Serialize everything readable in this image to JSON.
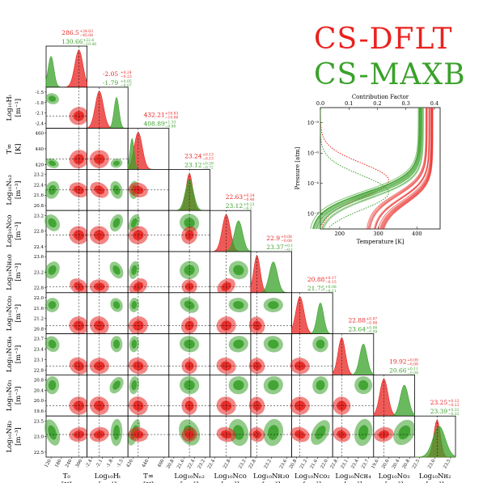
{
  "legend": {
    "red": {
      "label": "CS-DFLT",
      "color": "#e8231f"
    },
    "green": {
      "label": "CS-MAXB",
      "color": "#3aa12a"
    }
  },
  "colors": {
    "red": "#e8231f",
    "green": "#3aa12a"
  },
  "chart_data": [
    {
      "type": "corner",
      "parameters": [
        {
          "name": "T0",
          "label": "T₀",
          "unit": "[K]",
          "ticks": [
            "120",
            "180",
            "240",
            "300"
          ],
          "red": {
            "median": "286.5",
            "plus": "+24.63",
            "minus": "−45.08"
          },
          "green": {
            "median": "130.66",
            "plus": "+22.6",
            "minus": "−10.46"
          }
        },
        {
          "name": "log10_HT",
          "label": "Log₁₀Hₜ",
          "unit": "[m⁻¹]",
          "ticks": [
            "-2.4",
            "-2.1",
            "-1.8",
            "-1.5"
          ],
          "red": {
            "median": "-2.05",
            "plus": "+0.24",
            "minus": "−0.23"
          },
          "green": {
            "median": "-1.79",
            "plus": "+0.05",
            "minus": "−0.07"
          }
        },
        {
          "name": "T_inf",
          "label": "T∞",
          "unit": "[K]",
          "ticks": [
            "420",
            "440",
            "460"
          ],
          "red": {
            "median": "432.21",
            "plus": "+16.83",
            "minus": "−10.86"
          },
          "green": {
            "median": "408.89",
            "plus": "+1.33",
            "minus": "−0.80"
          }
        },
        {
          "name": "log10_NN2",
          "label": "Log₁₀Nₙ₂",
          "unit": "[m⁻³]",
          "ticks": [
            "20.8",
            "21.6",
            "22.4",
            "23.2"
          ],
          "red": {
            "median": "23.24",
            "plus": "+0.13",
            "minus": "−0.13"
          },
          "green": {
            "median": "23.12",
            "plus": "+0.39",
            "minus": "−0.72"
          }
        },
        {
          "name": "log10_NCO",
          "label": "Log₁₀Nᴄᴏ",
          "unit": "[m⁻³]",
          "ticks": [
            "22.4",
            "22.8",
            "23.2"
          ],
          "red": {
            "median": "22.63",
            "plus": "+0.34",
            "minus": "−0.46"
          },
          "green": {
            "median": "23.12",
            "plus": "+0.23",
            "minus": "−0.2"
          }
        },
        {
          "name": "log10_NH2O",
          "label": "Log₁₀Nʜ₂ᴏ",
          "unit": "[m⁻³]",
          "ticks": [
            "22.8",
            "23.2",
            "23.6"
          ],
          "red": {
            "median": "22.9",
            "plus": "+0.08",
            "minus": "−0.08"
          },
          "green": {
            "median": "23.37",
            "plus": "+0.1",
            "minus": "−0.1"
          }
        },
        {
          "name": "log10_NCO2",
          "label": "Log₁₀Nᴄᴏ₂",
          "unit": "[m⁻³]",
          "ticks": [
            "20.8",
            "21.2",
            "21.6",
            "22.0"
          ],
          "red": {
            "median": "20.88",
            "plus": "+0.17",
            "minus": "−0.15"
          },
          "green": {
            "median": "21.75",
            "plus": "+0.08",
            "minus": "−0.11"
          }
        },
        {
          "name": "log10_NCH4",
          "label": "Log₁₀Nᴄʜ₄",
          "unit": "[m⁻³]",
          "ticks": [
            "22.8",
            "23.1",
            "23.4",
            "23.7"
          ],
          "red": {
            "median": "22.88",
            "plus": "+0.07",
            "minus": "−0.08"
          },
          "green": {
            "median": "23.64",
            "plus": "+0.08",
            "minus": "−0.09"
          }
        },
        {
          "name": "log10_NO3",
          "label": "Log₁₀Nᴏ₃",
          "unit": "[m⁻³]",
          "ticks": [
            "19.6",
            "20.0",
            "20.4",
            "20.8"
          ],
          "red": {
            "median": "19.92",
            "plus": "+0.09",
            "minus": "−0.08"
          },
          "green": {
            "median": "20.66",
            "plus": "+0.11",
            "minus": "−0.09"
          }
        },
        {
          "name": "log10_NH2",
          "label": "Log₁₀Nʜ₂",
          "unit": "[m⁻³]",
          "ticks": [
            "22.5",
            "23.0",
            "23.5"
          ],
          "red": {
            "median": "23.25",
            "plus": "+0.12",
            "minus": "−0.12"
          },
          "green": {
            "median": "23.39",
            "plus": "+0.31",
            "minus": "−0.32"
          }
        }
      ],
      "y_labels": [
        {
          "row": 1,
          "label": "Log₁₀Hₜ",
          "unit": "[m⁻¹]",
          "ticks": [
            "-1.5",
            "-1.8",
            "-2.1",
            "-2.4"
          ]
        },
        {
          "row": 2,
          "label": "T∞",
          "unit": "[K]",
          "ticks": [
            "460",
            "440",
            "420"
          ]
        },
        {
          "row": 3,
          "label": "Log₁₀Nₙ₂",
          "unit": "[m⁻³]",
          "ticks": [
            "23.2",
            "22.4",
            "21.6",
            "20.8"
          ]
        },
        {
          "row": 4,
          "label": "Log₁₀Nᴄᴏ",
          "unit": "[m⁻³]",
          "ticks": [
            "23.2",
            "22.8",
            "22.4"
          ]
        },
        {
          "row": 5,
          "label": "Log₁₀Nʜ₂ᴏ",
          "unit": "[m⁻³]",
          "ticks": [
            "23.6",
            "23.2",
            "22.8"
          ]
        },
        {
          "row": 6,
          "label": "Log₁₀Nᴄᴏ₂",
          "unit": "[m⁻³]",
          "ticks": [
            "22.0",
            "21.6",
            "21.2",
            "20.8"
          ]
        },
        {
          "row": 7,
          "label": "Log₁₀Nᴄʜ₄",
          "unit": "[m⁻³]",
          "ticks": [
            "23.7",
            "23.4",
            "23.1",
            "22.8"
          ]
        },
        {
          "row": 8,
          "label": "Log₁₀Nᴏ₃",
          "unit": "[m⁻³]",
          "ticks": [
            "20.8",
            "20.4",
            "20.0",
            "19.6"
          ]
        },
        {
          "row": 9,
          "label": "Log₁₀Nʜ₂",
          "unit": "[m⁻³]",
          "ticks": [
            "23.5",
            "23.0",
            "22.5"
          ]
        }
      ]
    },
    {
      "type": "line",
      "xlabel": "Temperature [K]",
      "ylabel": "Pressure [atm]",
      "top_xlabel": "Contribution Factor",
      "x_ticks": [
        "200",
        "300",
        "400"
      ],
      "xlim": [
        150,
        460
      ],
      "top_ticks": [
        "0.0",
        "0.1",
        "0.2",
        "0.3",
        "0.4"
      ],
      "top_lim": [
        0.0,
        0.42
      ],
      "y_ticks": [
        "10⁻⁸",
        "10⁻⁶",
        "10⁻⁴",
        "10⁻²"
      ],
      "ylim_log10": [
        -9,
        -1
      ],
      "series": [
        {
          "color": "#e8231f",
          "T0": 286.5,
          "Tinf": 432.21,
          "log10_HT": -2.05
        },
        {
          "color": "#3aa12a",
          "T0": 130.66,
          "Tinf": 408.89,
          "log10_HT": -1.79
        }
      ]
    }
  ]
}
